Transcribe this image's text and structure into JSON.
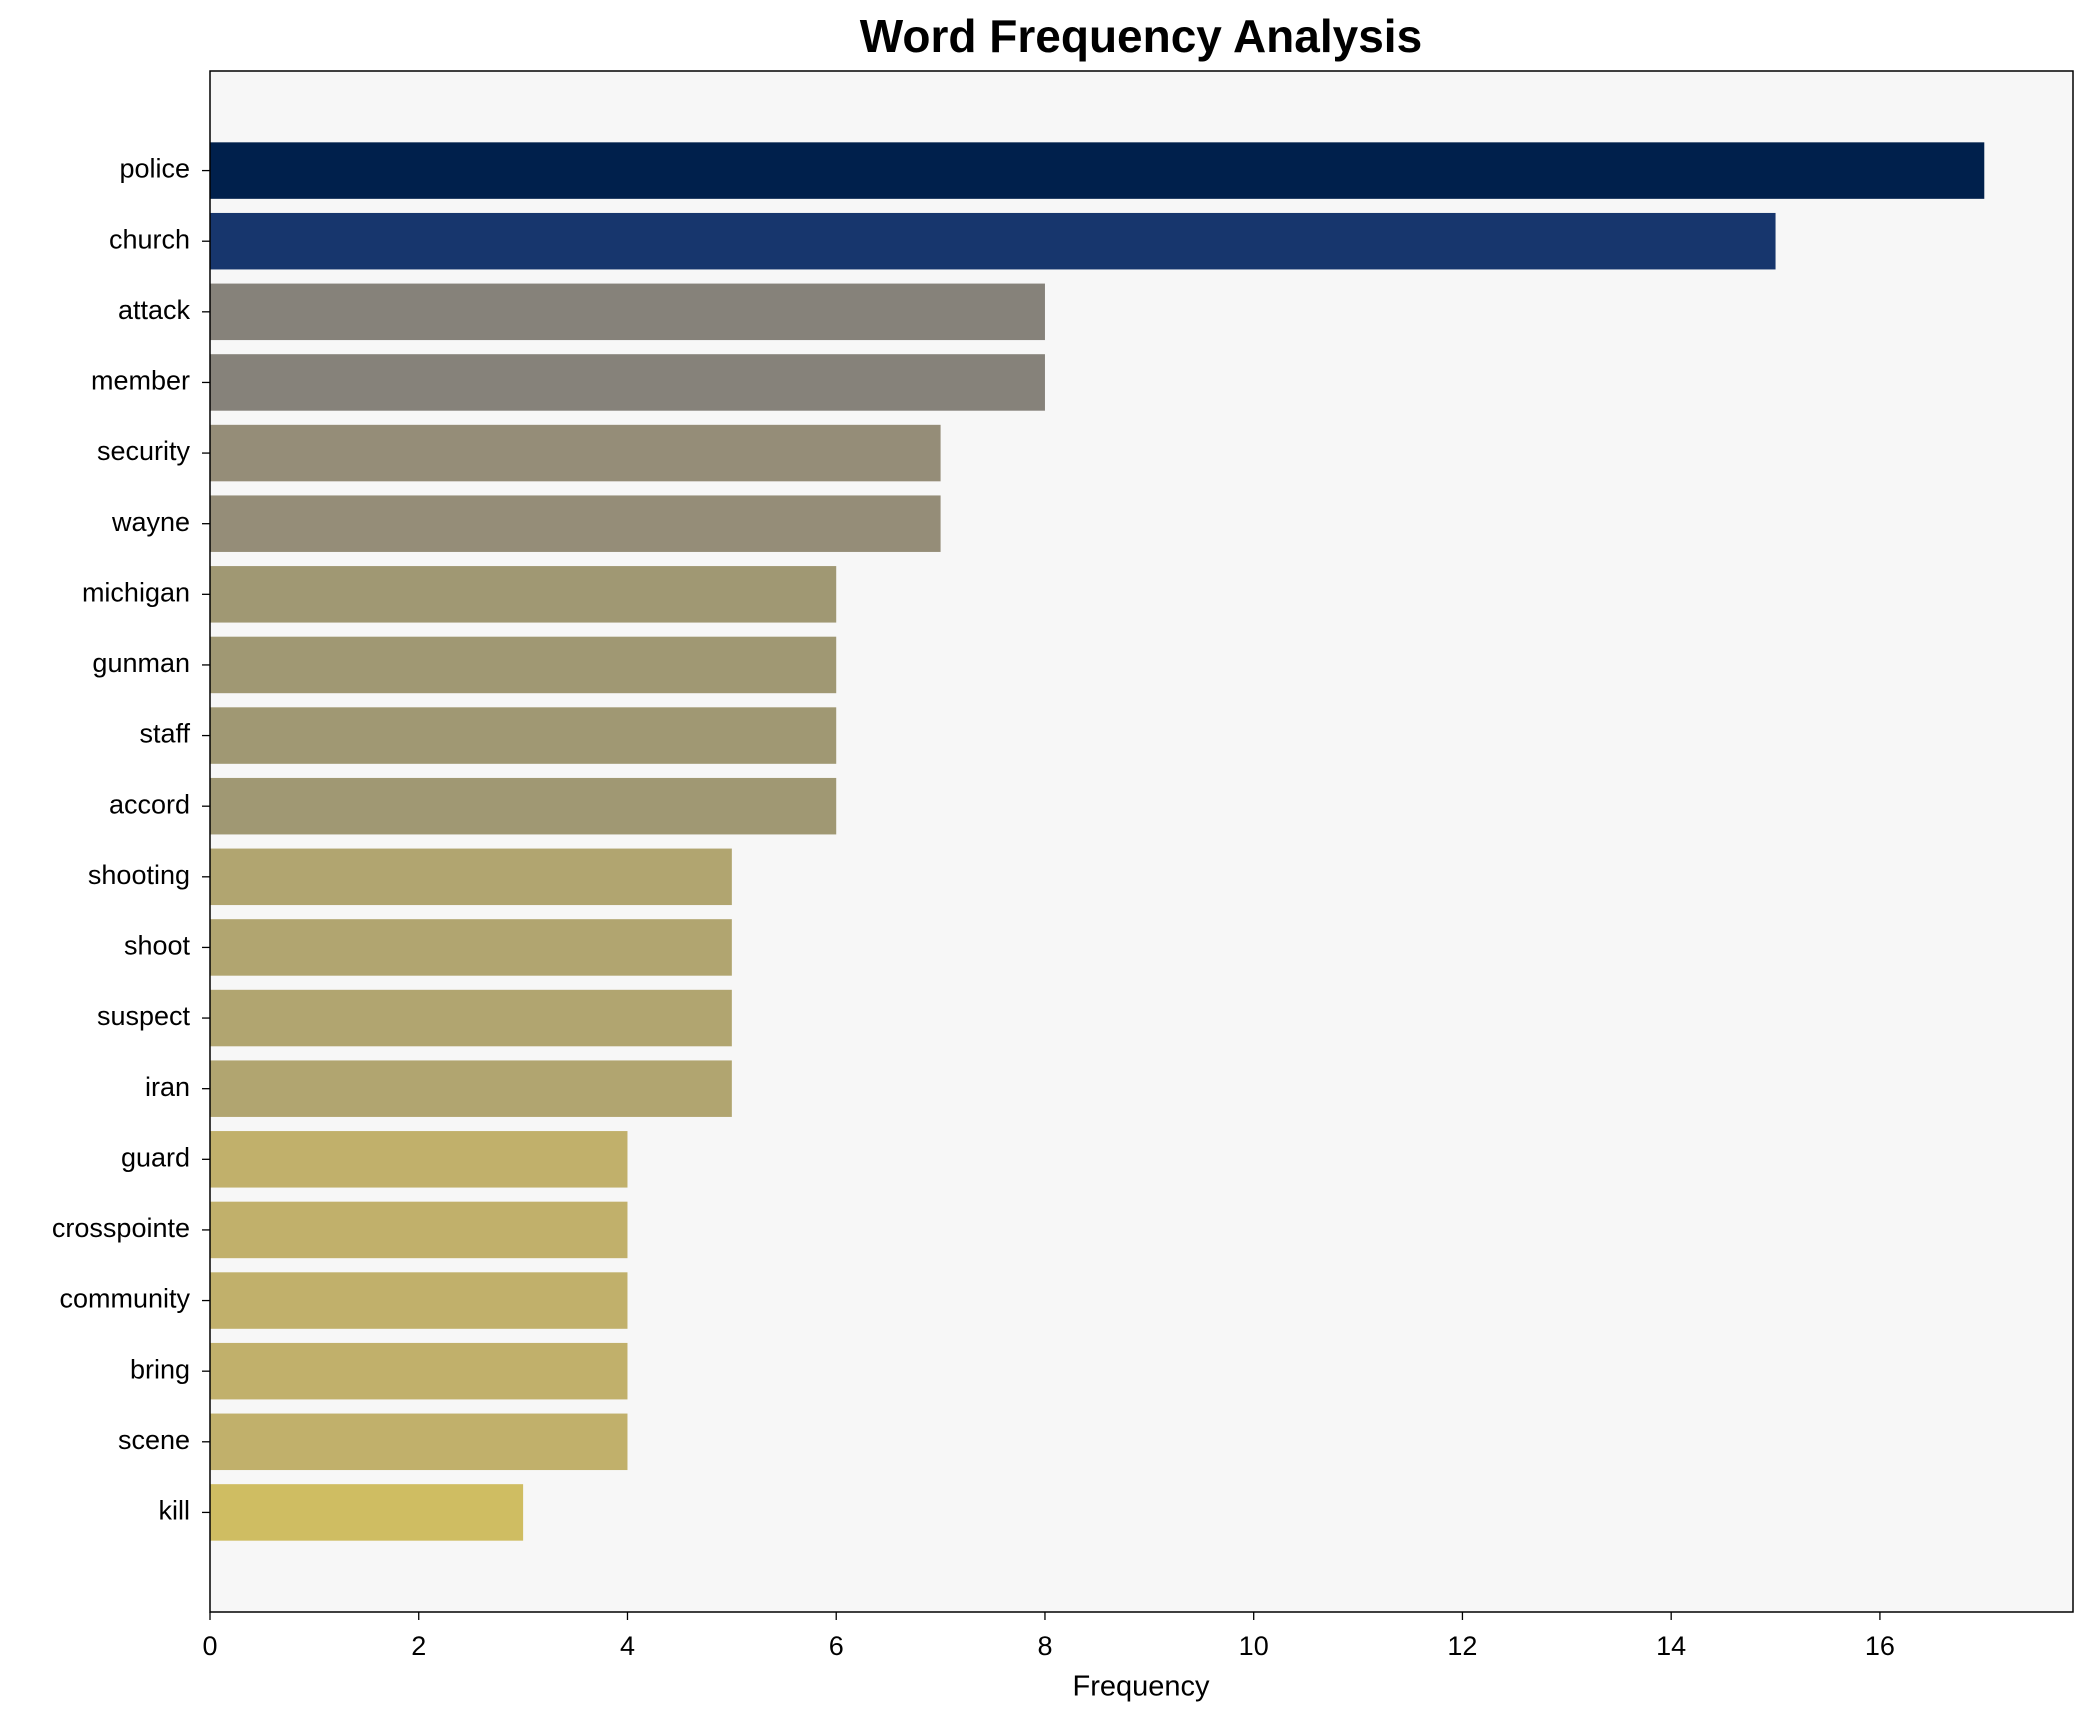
{
  "chart_data": {
    "type": "barh",
    "title": "Word Frequency Analysis",
    "x_label": "Frequency",
    "categories": [
      "police",
      "church",
      "attack",
      "member",
      "security",
      "wayne",
      "michigan",
      "gunman",
      "staff",
      "accord",
      "shooting",
      "shoot",
      "suspect",
      "iran",
      "guard",
      "crosspointe",
      "community",
      "bring",
      "scene",
      "kill"
    ],
    "values": [
      17,
      15,
      8,
      8,
      7,
      7,
      6,
      6,
      6,
      6,
      5,
      5,
      5,
      5,
      4,
      4,
      4,
      4,
      4,
      3
    ],
    "colors": [
      "#00204c",
      "#17366d",
      "#86827a",
      "#86827a",
      "#958d78",
      "#958d78",
      "#a09873",
      "#a09873",
      "#a09873",
      "#a09873",
      "#b1a570",
      "#b1a570",
      "#b1a570",
      "#b1a570",
      "#c1b06b",
      "#c1b06b",
      "#c1b06b",
      "#c1b06b",
      "#c1b06b",
      "#cfbd62"
    ],
    "xlim": [
      0,
      17.85
    ],
    "xticks": [
      0,
      2,
      4,
      6,
      8,
      10,
      12,
      14,
      16
    ],
    "grid": false
  }
}
